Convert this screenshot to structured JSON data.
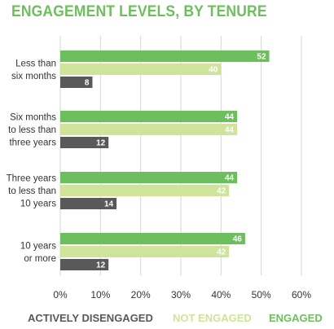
{
  "colors": {
    "engaged": "#6dbf5d",
    "not_engaged": "#cfe39a",
    "disengaged": "#595959",
    "grid": "#d6d6d6",
    "text": "#333333",
    "title": "#6dbf5d"
  },
  "chart_data": {
    "type": "bar",
    "orientation": "horizontal",
    "title": "ENGAGEMENT LEVELS, BY TENURE",
    "categories": [
      [
        "Less than",
        "six months"
      ],
      [
        "Six months",
        "to less than",
        "three years"
      ],
      [
        "Three years",
        "to less than",
        "10 years"
      ],
      [
        "10 years",
        "or more"
      ]
    ],
    "series": [
      {
        "name": "ENGAGED",
        "values": [
          52,
          44,
          44,
          46
        ]
      },
      {
        "name": "NOT ENGAGED",
        "values": [
          40,
          44,
          42,
          42
        ]
      },
      {
        "name": "ACTIVELY DISENGAGED",
        "values": [
          8,
          12,
          14,
          12
        ]
      }
    ],
    "xlim": [
      0,
      60
    ],
    "xticks": [
      "0%",
      "10%",
      "20%",
      "30%",
      "40%",
      "50%",
      "60%"
    ],
    "grid": true,
    "legend_placement": "bottom"
  }
}
